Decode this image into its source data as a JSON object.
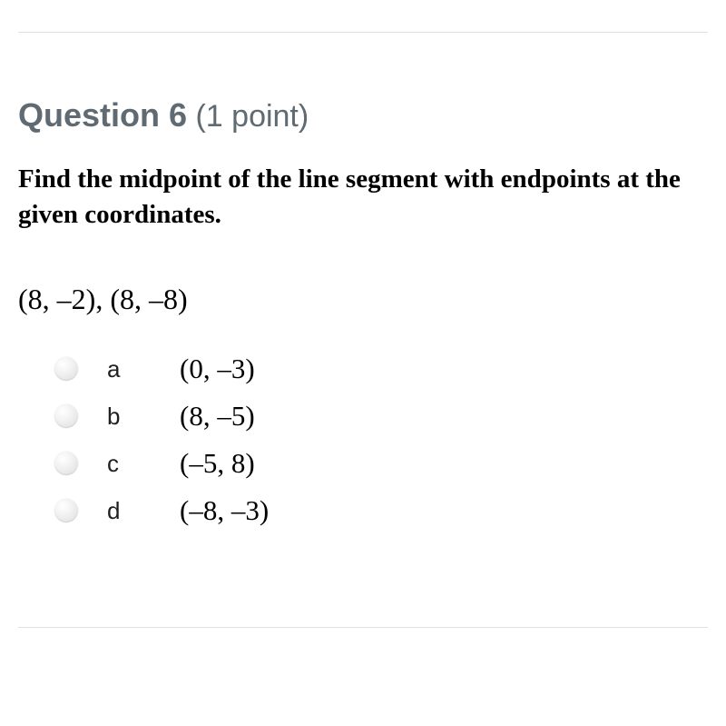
{
  "header": {
    "number_label": "Question 6",
    "points_label": " (1 point)",
    "title_color": "#5f6a72"
  },
  "prompt": "Find the midpoint of the line segment with endpoints at the given coordinates.",
  "coordinates_text": "(8, –2), (8, –8)",
  "options": [
    {
      "letter": "a",
      "value": "(0, –3)"
    },
    {
      "letter": "b",
      "value": "(8, –5)"
    },
    {
      "letter": "c",
      "value": "(–5, 8)"
    },
    {
      "letter": "d",
      "value": "(–8, –3)"
    }
  ],
  "colors": {
    "background": "#ffffff",
    "divider": "#e0e0e0",
    "text": "#000000"
  }
}
